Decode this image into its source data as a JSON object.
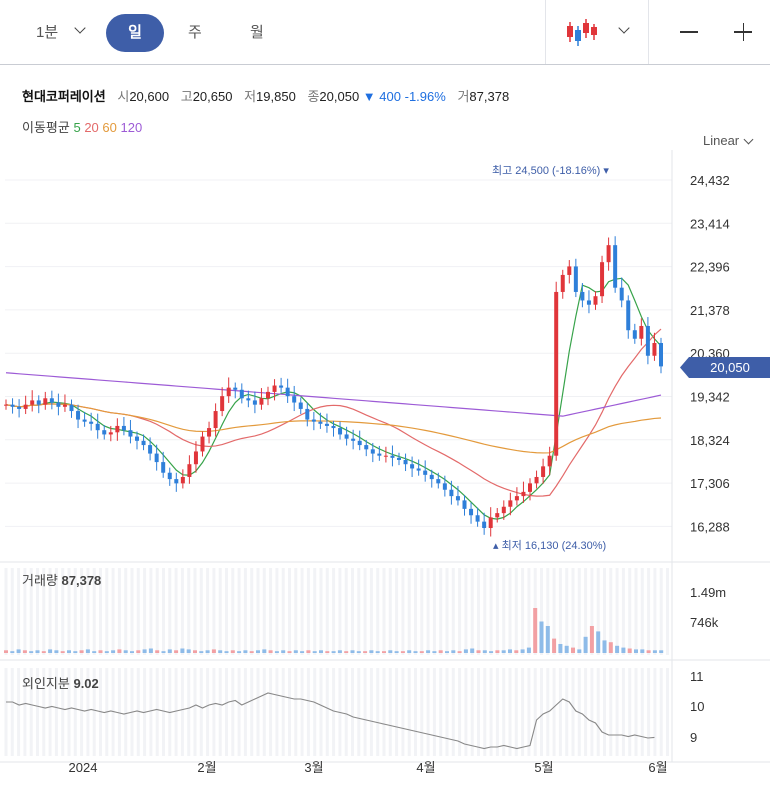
{
  "toolbar": {
    "timeframes": [
      "1분",
      "일",
      "주",
      "월"
    ],
    "active": "일",
    "chart_type_icon": "candlestick-icon"
  },
  "stock": {
    "name": "현대코퍼레이션",
    "open_label": "시",
    "open": "20,600",
    "high_label": "고",
    "high": "20,650",
    "low_label": "저",
    "low": "19,850",
    "close_label": "종",
    "close": "20,050",
    "change_arrow": "▼",
    "change": "400",
    "change_pct": "-1.96%",
    "volume_label": "거",
    "volume": "87,378"
  },
  "moving_average": {
    "label": "이동평균",
    "periods": [
      "5",
      "20",
      "60",
      "120"
    ],
    "colors": [
      "#37a34a",
      "#e36a6a",
      "#e39a3c",
      "#9d5bd6"
    ]
  },
  "scale": "Linear",
  "colors": {
    "up": "#e0353a",
    "down": "#2e7fd9",
    "accent": "#3e5ea8"
  },
  "chart_data": {
    "type": "candlestick",
    "y_ticks": [
      "24,432",
      "23,414",
      "22,396",
      "21,378",
      "20,360",
      "19,342",
      "18,324",
      "17,306",
      "16,288"
    ],
    "x_ticks": [
      "2024",
      "2월",
      "3월",
      "4월",
      "5월",
      "6월"
    ],
    "current_price": "20,050",
    "high_annotation": "최고 24,500 (-18.16%)",
    "low_annotation": "최저 16,130 (24.30%)",
    "volume": {
      "label": "거래량",
      "value": "87,378",
      "ticks": [
        "1.49m",
        "746k"
      ]
    },
    "foreign": {
      "label": "외인지분",
      "value": "9.02",
      "ticks": [
        "11",
        "10",
        "9"
      ]
    }
  }
}
